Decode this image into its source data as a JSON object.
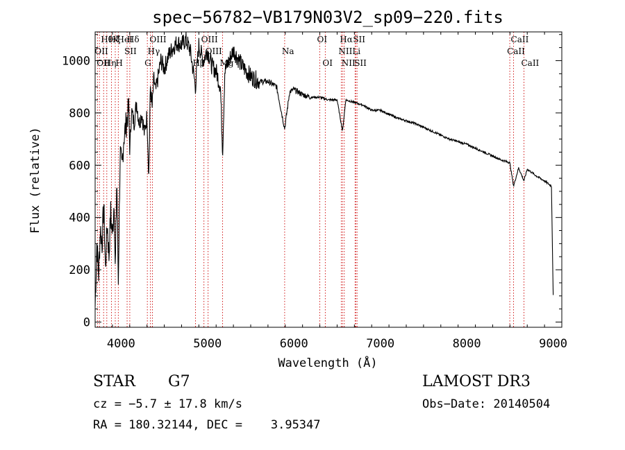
{
  "chart_data": {
    "type": "line",
    "title": "spec−56782−VB179N03V2_sp09−220.fits",
    "xlabel": "Wavelength (Å)",
    "ylabel": "Flux (relative)",
    "xlim": [
      3700,
      9100
    ],
    "ylim": [
      -20,
      1110
    ],
    "xticks": [
      4000,
      5000,
      6000,
      7000,
      8000,
      9000
    ],
    "yticks": [
      0,
      200,
      400,
      600,
      800,
      1000
    ],
    "series": [
      {
        "name": "flux",
        "x": [
          3700,
          3720,
          3740,
          3760,
          3780,
          3800,
          3820,
          3840,
          3860,
          3880,
          3900,
          3920,
          3933,
          3950,
          3968,
          3990,
          4010,
          4030,
          4060,
          4090,
          4101,
          4120,
          4150,
          4180,
          4210,
          4240,
          4270,
          4300,
          4320,
          4340,
          4360,
          4380,
          4400,
          4430,
          4460,
          4500,
          4550,
          4600,
          4650,
          4700,
          4750,
          4800,
          4861,
          4900,
          4950,
          5000,
          5050,
          5100,
          5150,
          5175,
          5200,
          5250,
          5300,
          5400,
          5500,
          5600,
          5700,
          5800,
          5893,
          5950,
          6000,
          6100,
          6200,
          6300,
          6400,
          6500,
          6563,
          6600,
          6700,
          6800,
          6900,
          7000,
          7200,
          7400,
          7600,
          7800,
          8000,
          8200,
          8400,
          8498,
          8542,
          8600,
          8662,
          8700,
          8800,
          8900,
          8980,
          9000
        ],
        "y": [
          60,
          300,
          180,
          360,
          300,
          450,
          200,
          380,
          250,
          420,
          330,
          470,
          180,
          560,
          150,
          650,
          580,
          700,
          760,
          820,
          650,
          810,
          760,
          840,
          760,
          800,
          720,
          790,
          560,
          900,
          820,
          930,
          880,
          940,
          1000,
          970,
          1020,
          1050,
          1070,
          1060,
          1080,
          1040,
          900,
          1060,
          1000,
          1040,
          980,
          960,
          900,
          650,
          960,
          1000,
          1040,
          980,
          940,
          920,
          920,
          900,
          740,
          880,
          890,
          870,
          860,
          860,
          850,
          850,
          730,
          850,
          840,
          830,
          810,
          810,
          780,
          760,
          730,
          700,
          680,
          650,
          620,
          610,
          520,
          590,
          540,
          585,
          560,
          540,
          520,
          100
        ]
      }
    ],
    "lines": [
      {
        "w": 3727,
        "labels": [
          "OII"
        ],
        "row": 1
      },
      {
        "w": 3750,
        "labels": [
          "OII"
        ],
        "row": 2
      },
      {
        "w": 3798,
        "labels": [
          "Hθ"
        ],
        "row": 0
      },
      {
        "w": 3835,
        "labels": [
          "Hη"
        ],
        "row": 2
      },
      {
        "w": 3889,
        "labels": [
          "Hζ",
          "HeI"
        ],
        "row": 0
      },
      {
        "w": 3933,
        "labels": [
          "K"
        ],
        "row": 0
      },
      {
        "w": 3968,
        "labels": [
          "H"
        ],
        "row": 2
      },
      {
        "w": 4070,
        "labels": [
          "SII"
        ],
        "row": 1
      },
      {
        "w": 4101,
        "labels": [
          "Hδ"
        ],
        "row": 0
      },
      {
        "w": 4304,
        "labels": [
          "G"
        ],
        "row": 2
      },
      {
        "w": 4340,
        "labels": [
          "Hγ"
        ],
        "row": 1
      },
      {
        "w": 4363,
        "labels": [
          "OIII"
        ],
        "row": 0
      },
      {
        "w": 4861,
        "labels": [
          "Hβ"
        ],
        "row": 2
      },
      {
        "w": 4959,
        "labels": [
          "OIII"
        ],
        "row": 0
      },
      {
        "w": 5007,
        "labels": [
          "OIII"
        ],
        "row": 1
      },
      {
        "w": 5175,
        "labels": [
          "Mg"
        ],
        "row": 2
      },
      {
        "w": 5893,
        "labels": [
          "Na"
        ],
        "row": 1
      },
      {
        "w": 6300,
        "labels": [
          "OI"
        ],
        "row": 0
      },
      {
        "w": 6363,
        "labels": [
          "OI"
        ],
        "row": 2
      },
      {
        "w": 6548,
        "labels": [
          "NII"
        ],
        "row": 1
      },
      {
        "w": 6563,
        "labels": [
          "Hα"
        ],
        "row": 0
      },
      {
        "w": 6583,
        "labels": [
          "NII"
        ],
        "row": 2
      },
      {
        "w": 6716,
        "labels": [
          "SII"
        ],
        "row": 0
      },
      {
        "w": 6731,
        "labels": [
          "SII"
        ],
        "row": 2
      },
      {
        "w": 6708,
        "labels": [
          "Li"
        ],
        "row": 1
      },
      {
        "w": 8498,
        "labels": [
          "CaII"
        ],
        "row": 1
      },
      {
        "w": 8542,
        "labels": [
          "CaII"
        ],
        "row": 0
      },
      {
        "w": 8662,
        "labels": [
          "CaII"
        ],
        "row": 2
      }
    ],
    "line_color": "#cc0000"
  },
  "info": {
    "class_label": "STAR",
    "subclass_label": "G7",
    "survey": "LAMOST DR3",
    "redshift": "cz = −5.7 ± 17.8 km/s",
    "obs_date": "Obs−Date: 20140504",
    "coords": "RA = 180.32144, DEC =    3.95347"
  }
}
